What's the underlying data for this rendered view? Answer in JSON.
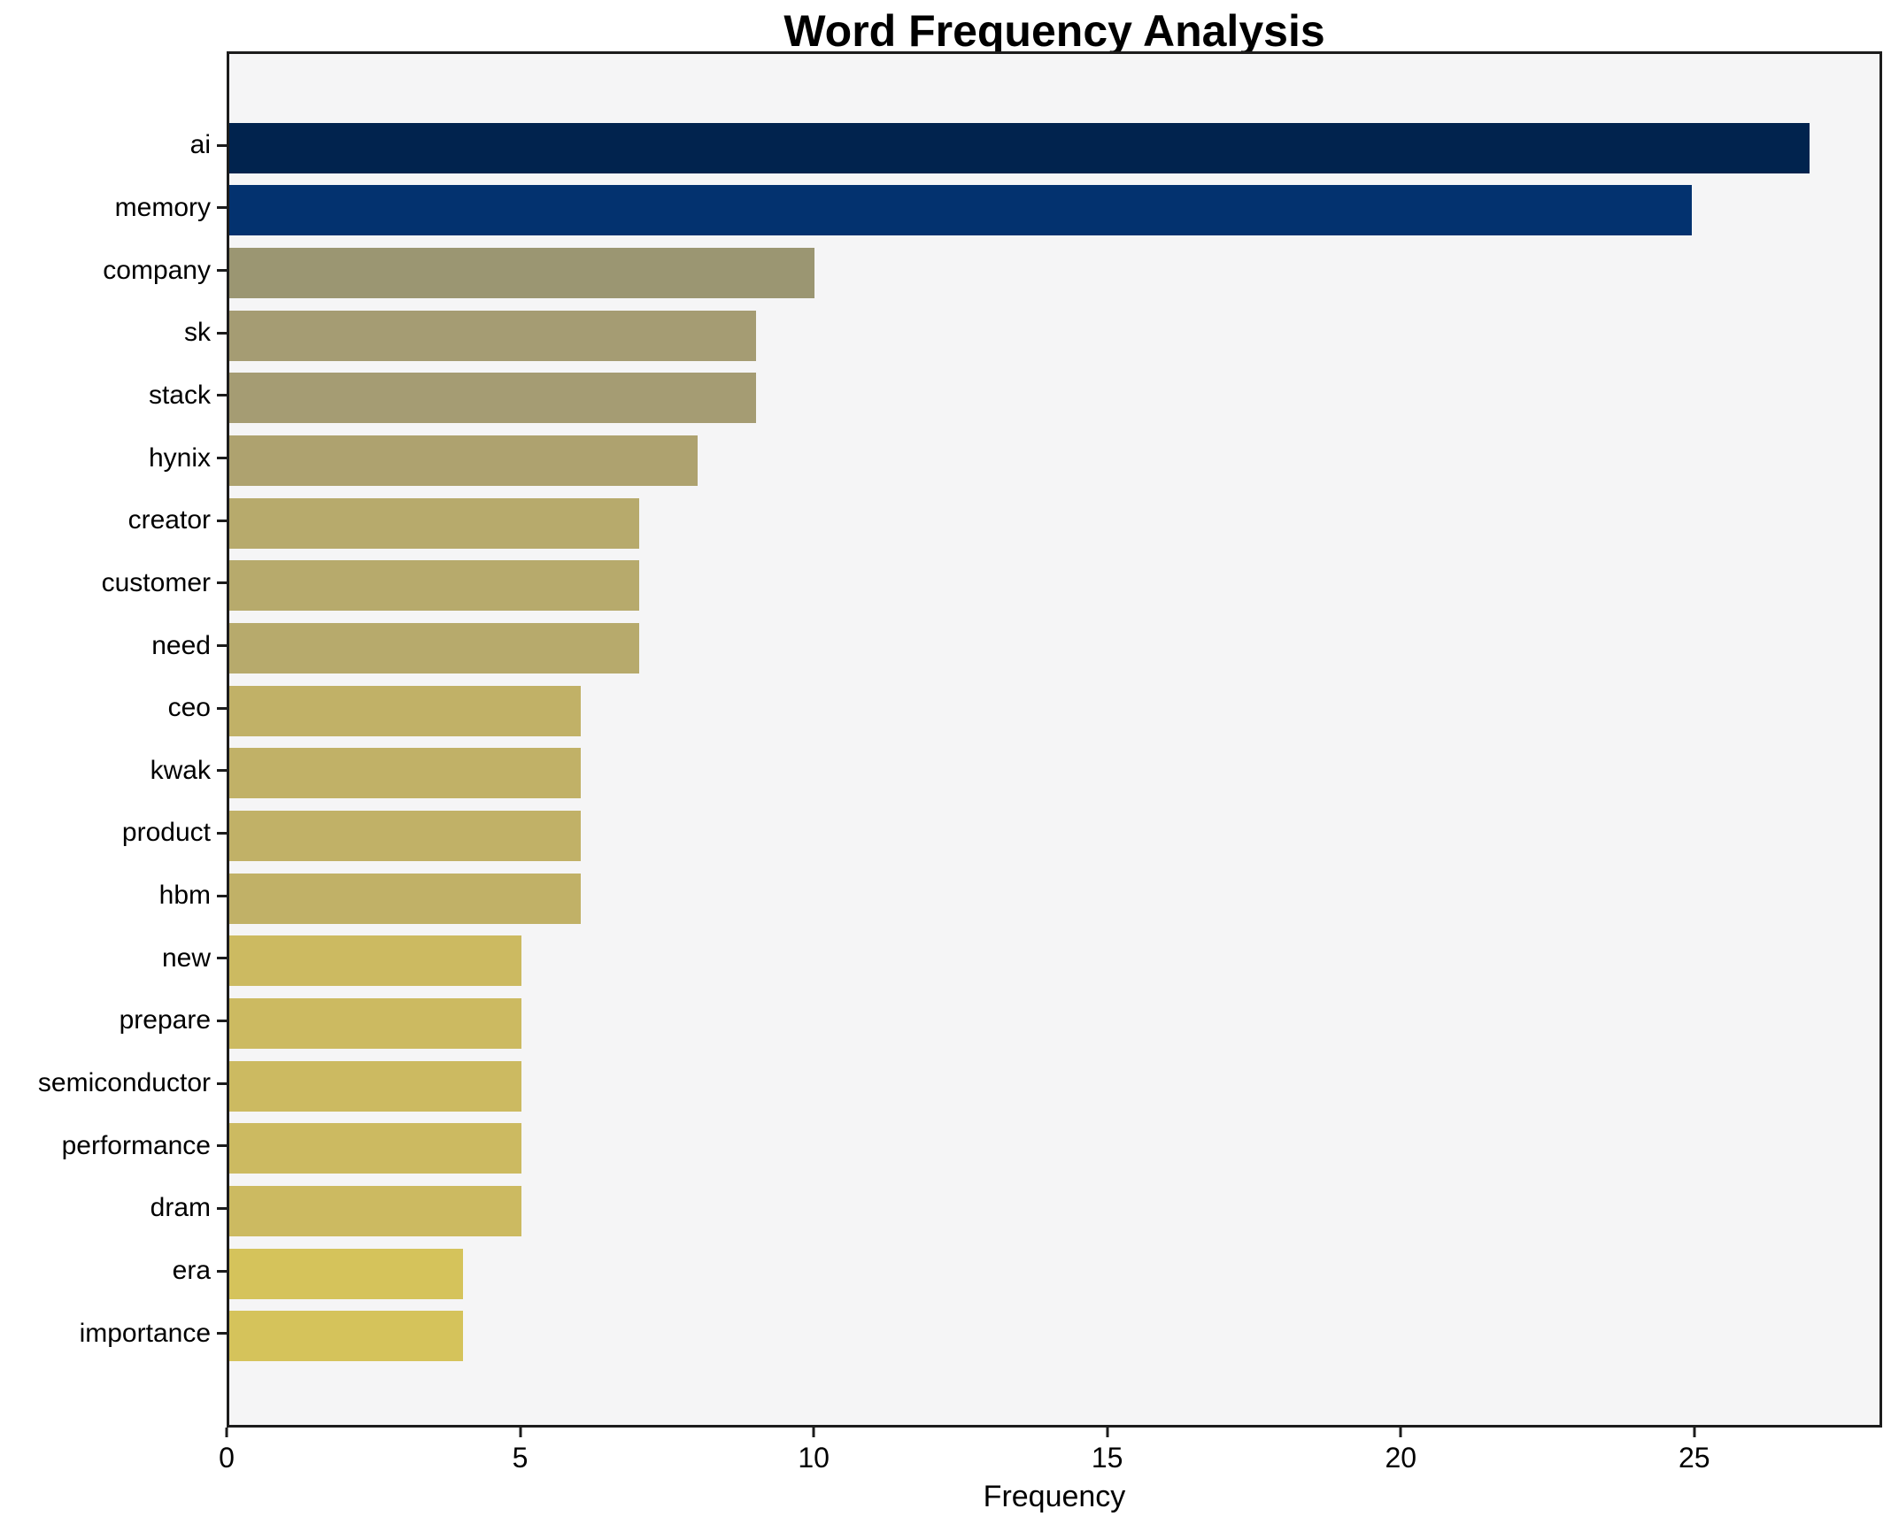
{
  "chart_data": {
    "type": "bar",
    "orientation": "horizontal",
    "title": "Word Frequency Analysis",
    "xlabel": "Frequency",
    "ylabel": "",
    "categories": [
      "ai",
      "memory",
      "company",
      "sk",
      "stack",
      "hynix",
      "creator",
      "customer",
      "need",
      "ceo",
      "kwak",
      "product",
      "hbm",
      "new",
      "prepare",
      "semiconductor",
      "performance",
      "dram",
      "era",
      "importance"
    ],
    "values": [
      27,
      25,
      10,
      9,
      9,
      8,
      7,
      7,
      7,
      6,
      6,
      6,
      6,
      5,
      5,
      5,
      5,
      5,
      4,
      4
    ],
    "bar_colors": [
      "#01234e",
      "#03326f",
      "#9b9672",
      "#a59c73",
      "#a59c73",
      "#aea26f",
      "#b7aa6c",
      "#b7aa6c",
      "#b7aa6c",
      "#c1b167",
      "#c1b167",
      "#c1b167",
      "#c1b167",
      "#ccba61",
      "#ccba61",
      "#ccba61",
      "#ccba61",
      "#ccba61",
      "#d5c35b",
      "#d5c35b"
    ],
    "xlim": [
      0,
      28.2
    ],
    "xticks": [
      0,
      5,
      10,
      15,
      20,
      25
    ],
    "xtick_labels": [
      "0",
      "5",
      "10",
      "15",
      "20",
      "25"
    ],
    "grid": false,
    "legend": false,
    "colors": {
      "figure_bg": "#ffffff",
      "plot_bg": "#f5f5f6",
      "axis": "#1c1c1c",
      "text": "#000000"
    }
  }
}
